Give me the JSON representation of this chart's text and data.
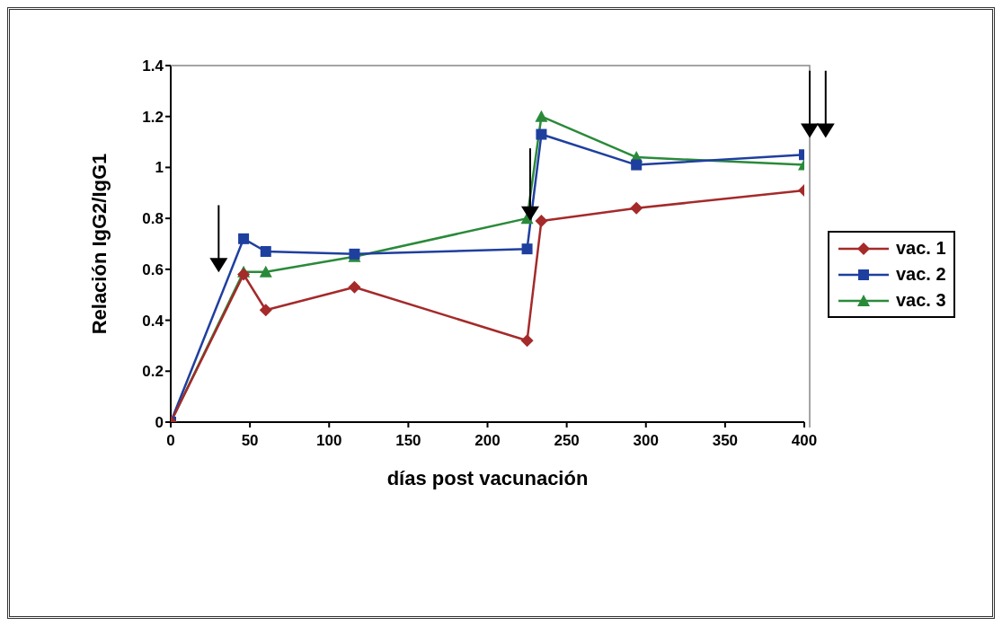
{
  "chart_data": {
    "type": "line",
    "xlabel": "días post vacunación",
    "ylabel": "Relación IgG2/IgG1",
    "x": [
      0,
      46,
      60,
      116,
      225,
      234,
      294,
      400
    ],
    "series": [
      {
        "name": "vac. 1",
        "color": "#a52a2a",
        "marker": "diamond",
        "values": [
          0,
          0.58,
          0.44,
          0.53,
          0.32,
          0.79,
          0.84,
          0.91
        ]
      },
      {
        "name": "vac. 2",
        "color": "#1f3f9f",
        "marker": "square",
        "values": [
          0,
          0.72,
          0.67,
          0.66,
          0.68,
          1.13,
          1.01,
          1.05
        ]
      },
      {
        "name": "vac. 3",
        "color": "#2a8a3a",
        "marker": "triangle",
        "values": [
          0,
          0.59,
          0.59,
          0.65,
          0.8,
          1.2,
          1.04,
          1.01
        ]
      }
    ],
    "xlim": [
      0,
      400
    ],
    "xticks": [
      0,
      50,
      100,
      150,
      200,
      250,
      300,
      350,
      400
    ],
    "ylim": [
      0,
      1.4
    ],
    "yticks": [
      0,
      0.2,
      0.4,
      0.6,
      0.8,
      1,
      1.2,
      1.4
    ],
    "grid": false,
    "legend": "right",
    "line_style": "solid"
  }
}
